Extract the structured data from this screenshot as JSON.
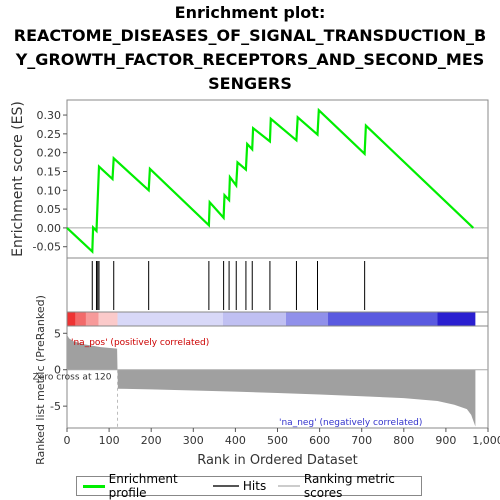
{
  "title_lines": [
    "Enrichment plot:",
    "REACTOME_DISEASES_OF_SIGNAL_TRANSDUCTION_B",
    "Y_GROWTH_FACTOR_RECEPTORS_AND_SECOND_MES",
    "SENGERS"
  ],
  "colors": {
    "profile": "#00ee00",
    "hits": "#000000",
    "metric_fill": "#a0a0a0",
    "pos_text": "#cc0000",
    "neg_text": "#3333cc",
    "zero_line": "#aaaaaa"
  },
  "chart_data": [
    {
      "type": "line",
      "name": "enrichment-profile",
      "ylabel": "Enrichment score (ES)",
      "xlim": [
        0,
        1000
      ],
      "ylim": [
        -0.08,
        0.34
      ],
      "yticks": [
        -0.05,
        0.0,
        0.05,
        0.1,
        0.15,
        0.2,
        0.25,
        0.3
      ],
      "ytick_labels": [
        "-0.05",
        "0.00",
        "0.05",
        "0.10",
        "0.15",
        "0.20",
        "0.25",
        "0.30"
      ],
      "x": [
        0,
        60,
        62,
        70,
        72,
        76,
        108,
        111,
        194,
        197,
        337,
        339,
        372,
        374,
        385,
        387,
        402,
        405,
        425,
        428,
        440,
        442,
        482,
        484,
        545,
        548,
        595,
        598,
        707,
        710,
        965
      ],
      "y": [
        0.0,
        -0.063,
        0.001,
        -0.008,
        0.048,
        0.163,
        0.13,
        0.185,
        0.1,
        0.157,
        0.007,
        0.068,
        0.027,
        0.087,
        0.074,
        0.135,
        0.113,
        0.174,
        0.155,
        0.223,
        0.209,
        0.265,
        0.23,
        0.29,
        0.233,
        0.294,
        0.248,
        0.313,
        0.197,
        0.272,
        0.0
      ]
    },
    {
      "type": "scatter",
      "name": "hits",
      "positions": [
        60,
        70,
        73,
        76,
        111,
        194,
        337,
        372,
        385,
        402,
        425,
        440,
        482,
        545,
        595,
        707
      ]
    },
    {
      "type": "area",
      "name": "ranked-list-metric",
      "ylabel": "Ranked list metric (PreRanked)",
      "xlabel": "Rank in Ordered Dataset",
      "xlim": [
        0,
        1000
      ],
      "ylim": [
        -8,
        6
      ],
      "xticks": [
        0,
        100,
        200,
        300,
        400,
        500,
        600,
        700,
        800,
        900,
        1000
      ],
      "xtick_labels": [
        "0",
        "100",
        "200",
        "300",
        "400",
        "500",
        "600",
        "700",
        "800",
        "900",
        "1,000"
      ],
      "yticks": [
        -5,
        0,
        5
      ],
      "ytick_labels": [
        "-5",
        "0",
        "5"
      ],
      "x": [
        0,
        5,
        15,
        40,
        80,
        119,
        120,
        121,
        200,
        300,
        400,
        500,
        600,
        700,
        800,
        880,
        920,
        950,
        960,
        965,
        970
      ],
      "y": [
        4.8,
        4.3,
        3.9,
        3.5,
        3.1,
        2.9,
        0.0,
        -2.6,
        -2.7,
        -2.85,
        -3.0,
        -3.2,
        -3.4,
        -3.65,
        -3.9,
        -4.3,
        -4.8,
        -5.4,
        -6.2,
        -7.0,
        -7.8
      ],
      "zero_cross_label": "Zero cross at 120",
      "pos_label": "'na_pos' (positively correlated)",
      "neg_label": "'na_neg' (negatively correlated)",
      "color_bar": [
        {
          "from": 0,
          "to": 20,
          "color": "#ee3333"
        },
        {
          "from": 20,
          "to": 45,
          "color": "#f26a6a"
        },
        {
          "from": 45,
          "to": 75,
          "color": "#f79a9a"
        },
        {
          "from": 75,
          "to": 120,
          "color": "#fbcaca"
        },
        {
          "from": 120,
          "to": 370,
          "color": "#d8d8f8"
        },
        {
          "from": 370,
          "to": 520,
          "color": "#c0c0f2"
        },
        {
          "from": 520,
          "to": 620,
          "color": "#9090ea"
        },
        {
          "from": 620,
          "to": 880,
          "color": "#5a5ae0"
        },
        {
          "from": 880,
          "to": 970,
          "color": "#2a1fd0"
        }
      ]
    }
  ],
  "legend": {
    "items": [
      {
        "label": "Enrichment profile",
        "color": "#00ee00",
        "style": "line-thick"
      },
      {
        "label": "Hits",
        "color": "#000000",
        "style": "line"
      },
      {
        "label": "Ranking metric scores",
        "color": "#cccccc",
        "style": "line"
      }
    ]
  }
}
